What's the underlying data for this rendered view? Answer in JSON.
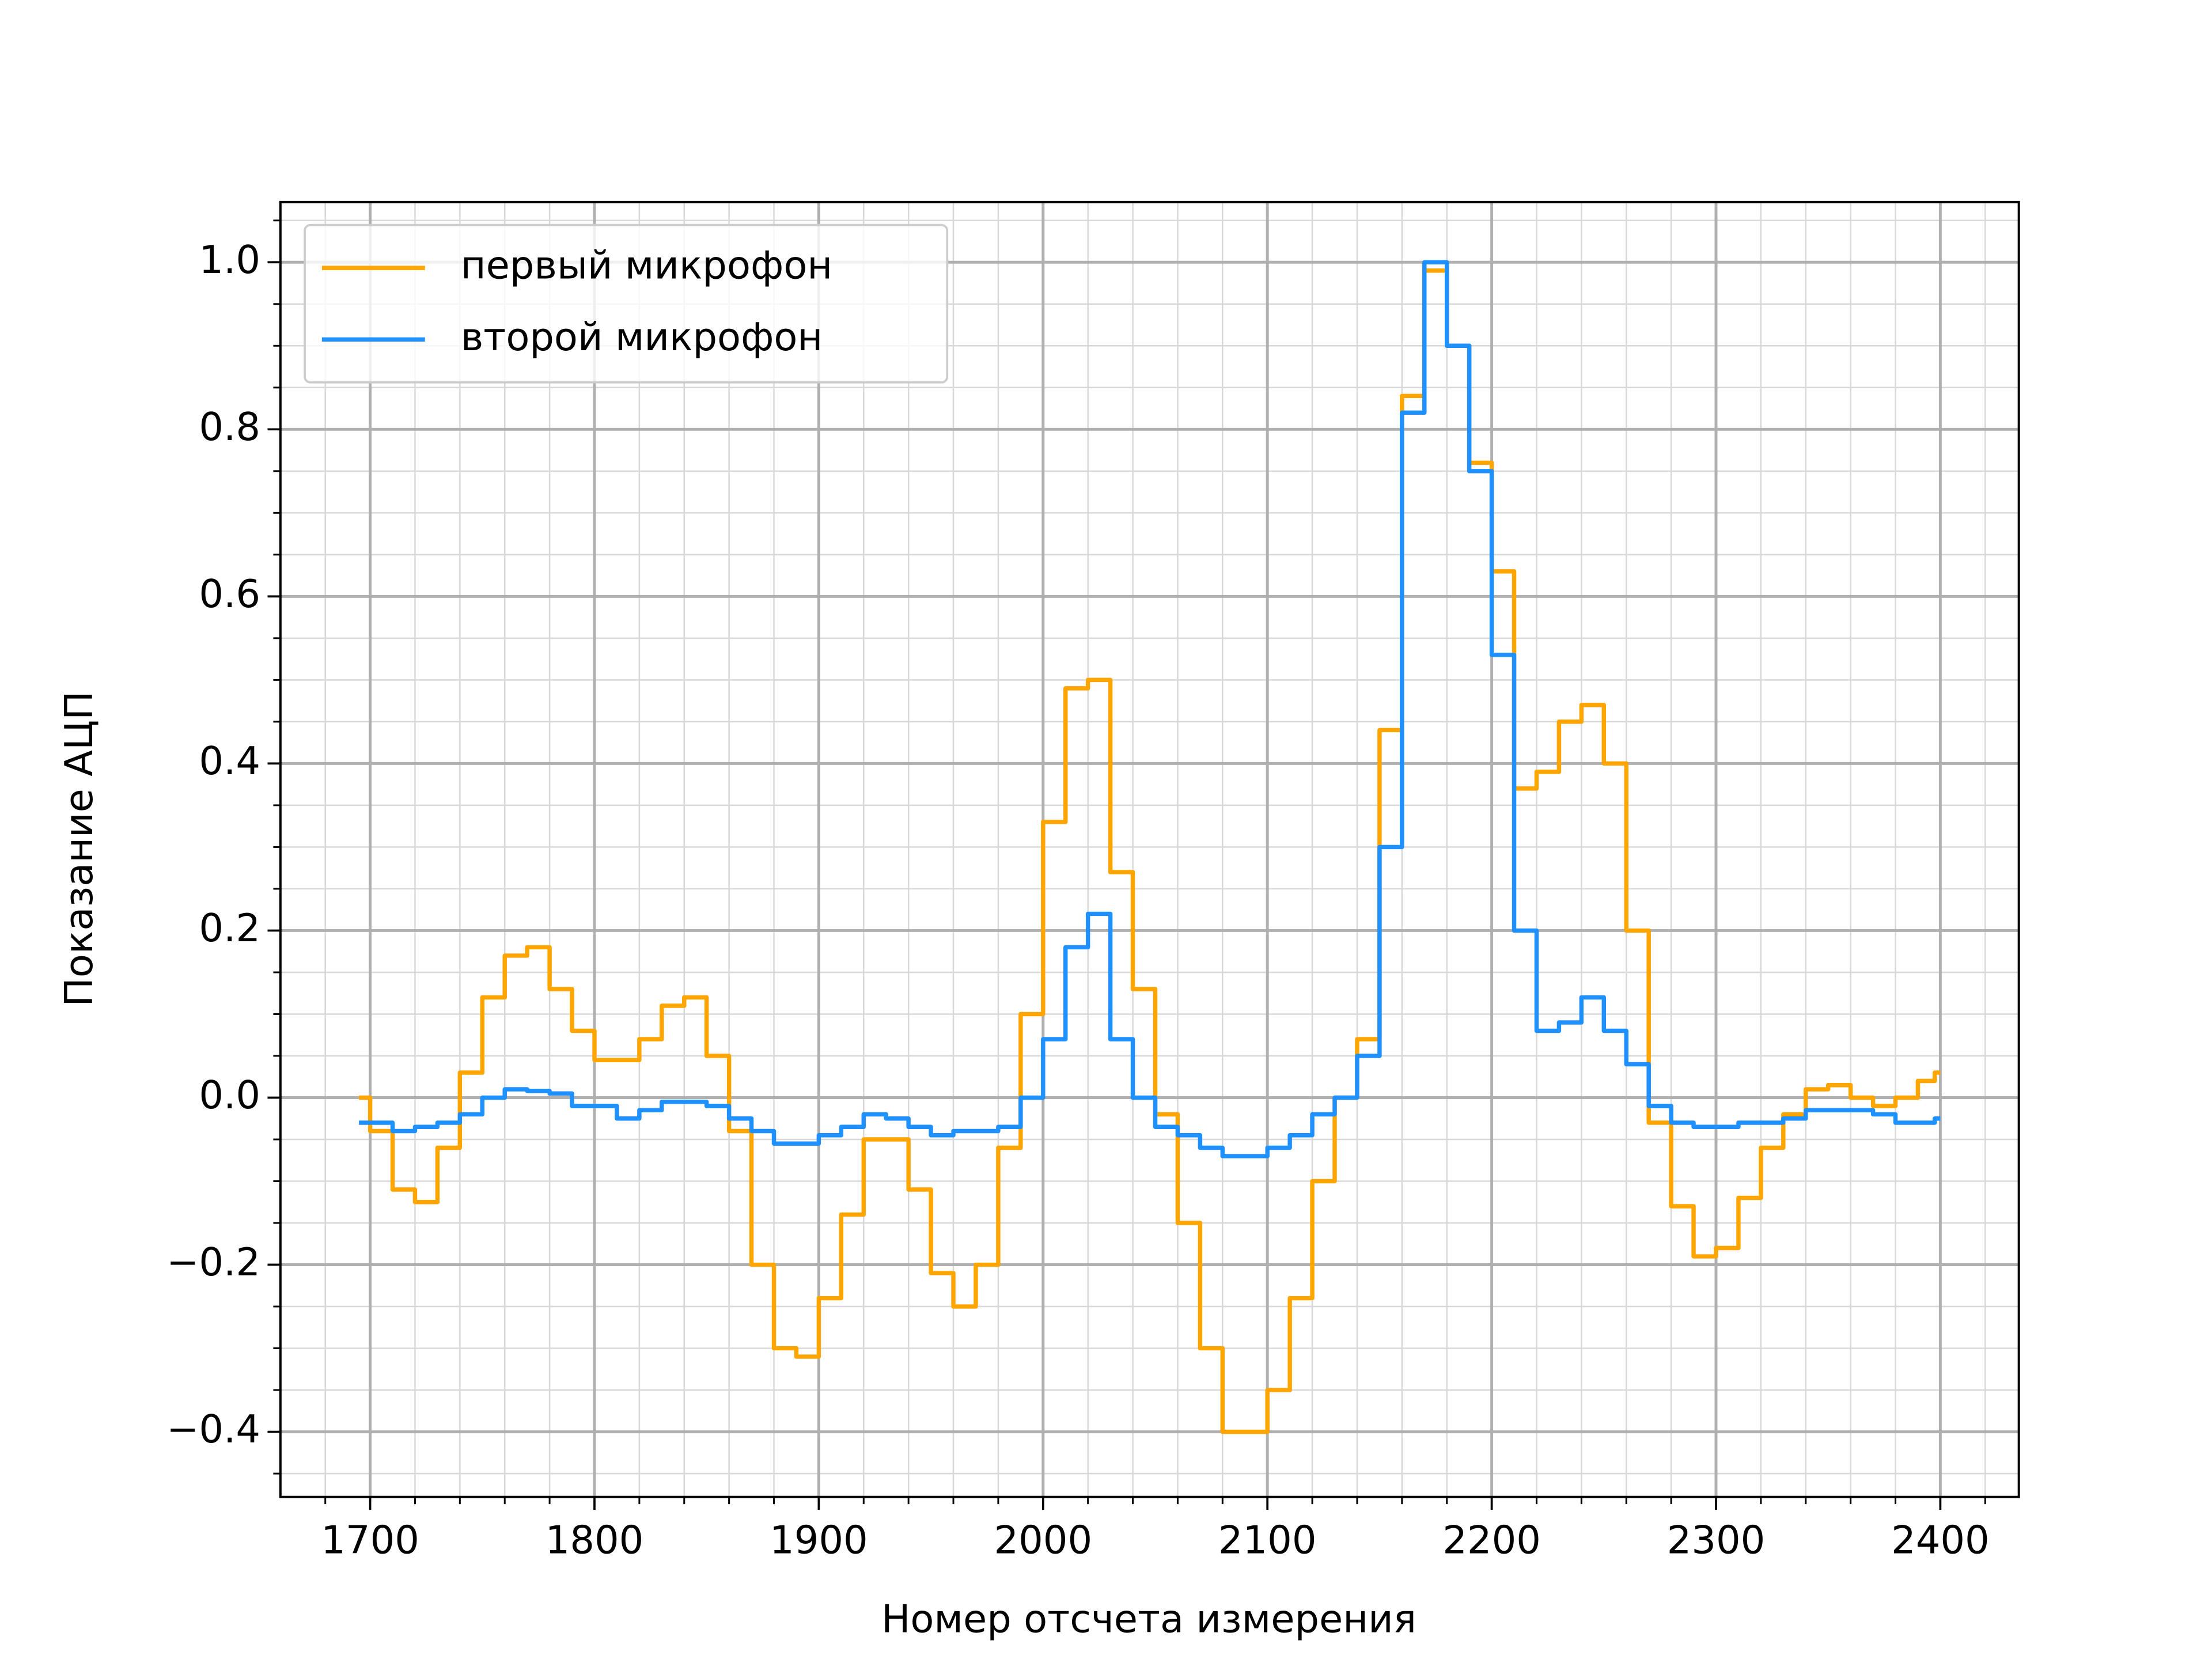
{
  "chart_data": {
    "type": "line",
    "drawstyle": "steps-mid",
    "xlabel": "Номер отсчета измерения",
    "ylabel": "Показание АЦП",
    "x": [
      1695,
      1705,
      1715,
      1725,
      1735,
      1745,
      1755,
      1765,
      1775,
      1785,
      1795,
      1805,
      1815,
      1825,
      1835,
      1845,
      1855,
      1865,
      1875,
      1885,
      1895,
      1905,
      1915,
      1925,
      1935,
      1945,
      1955,
      1965,
      1975,
      1985,
      1995,
      2005,
      2015,
      2025,
      2035,
      2045,
      2055,
      2065,
      2075,
      2085,
      2095,
      2105,
      2115,
      2125,
      2135,
      2145,
      2155,
      2165,
      2175,
      2185,
      2195,
      2205,
      2215,
      2225,
      2235,
      2245,
      2255,
      2265,
      2275,
      2285,
      2295,
      2305,
      2315,
      2325,
      2335,
      2345,
      2355,
      2365,
      2375,
      2385,
      2395,
      2400
    ],
    "series": [
      {
        "name": "первый микрофон",
        "color": "#ffa500",
        "values": [
          0.0,
          -0.04,
          -0.11,
          -0.125,
          -0.06,
          0.03,
          0.12,
          0.17,
          0.18,
          0.13,
          0.08,
          0.045,
          0.045,
          0.07,
          0.11,
          0.12,
          0.05,
          -0.04,
          -0.2,
          -0.3,
          -0.31,
          -0.24,
          -0.14,
          -0.05,
          -0.05,
          -0.11,
          -0.21,
          -0.25,
          -0.2,
          -0.06,
          0.1,
          0.33,
          0.49,
          0.5,
          0.27,
          0.13,
          -0.02,
          -0.15,
          -0.3,
          -0.4,
          -0.4,
          -0.35,
          -0.24,
          -0.1,
          0.0,
          0.07,
          0.44,
          0.84,
          0.99,
          0.9,
          0.76,
          0.63,
          0.37,
          0.39,
          0.45,
          0.47,
          0.4,
          0.2,
          -0.03,
          -0.13,
          -0.19,
          -0.18,
          -0.12,
          -0.06,
          -0.02,
          0.01,
          0.015,
          0.0,
          -0.01,
          0.0,
          0.02,
          0.03
        ]
      },
      {
        "name": "второй микрофон",
        "color": "#1e90ff",
        "values": [
          -0.03,
          -0.03,
          -0.04,
          -0.035,
          -0.03,
          -0.02,
          0.0,
          0.01,
          0.008,
          0.005,
          -0.01,
          -0.01,
          -0.025,
          -0.015,
          -0.005,
          -0.005,
          -0.01,
          -0.025,
          -0.04,
          -0.055,
          -0.055,
          -0.045,
          -0.035,
          -0.02,
          -0.025,
          -0.035,
          -0.045,
          -0.04,
          -0.04,
          -0.035,
          0.0,
          0.07,
          0.18,
          0.22,
          0.07,
          0.0,
          -0.035,
          -0.045,
          -0.06,
          -0.07,
          -0.07,
          -0.06,
          -0.045,
          -0.02,
          0.0,
          0.05,
          0.3,
          0.82,
          1.0,
          0.9,
          0.75,
          0.53,
          0.2,
          0.08,
          0.09,
          0.12,
          0.08,
          0.04,
          -0.01,
          -0.03,
          -0.035,
          -0.035,
          -0.03,
          -0.03,
          -0.025,
          -0.015,
          -0.015,
          -0.015,
          -0.02,
          -0.03,
          -0.03,
          -0.025
        ]
      }
    ],
    "xlim": [
      1660,
      2435
    ],
    "ylim": [
      -0.478,
      1.072
    ],
    "xticks": [
      1700,
      1800,
      1900,
      2000,
      2100,
      2200,
      2300,
      2400
    ],
    "yticks": [
      {
        "value": -0.4,
        "label": "−0.4"
      },
      {
        "value": -0.2,
        "label": "−0.2"
      },
      {
        "value": 0,
        "label": "0.0"
      },
      {
        "value": 0.2,
        "label": "0.2"
      },
      {
        "value": 0.4,
        "label": "0.4"
      },
      {
        "value": 0.6,
        "label": "0.6"
      },
      {
        "value": 0.8,
        "label": "0.8"
      },
      {
        "value": 1.0,
        "label": "1.0"
      }
    ],
    "xminorticks": [
      1680,
      1700,
      1720,
      1740,
      1760,
      1780,
      1800,
      1820,
      1840,
      1860,
      1880,
      1900,
      1920,
      1940,
      1960,
      1980,
      2000,
      2020,
      2040,
      2060,
      2080,
      2100,
      2120,
      2140,
      2160,
      2180,
      2200,
      2220,
      2240,
      2260,
      2280,
      2300,
      2320,
      2340,
      2360,
      2380,
      2400,
      2420
    ],
    "yminorticks": [
      -0.45,
      -0.4,
      -0.35,
      -0.3,
      -0.25,
      -0.2,
      -0.15,
      -0.1,
      -0.05,
      0,
      0.05,
      0.1,
      0.15,
      0.2,
      0.25,
      0.3,
      0.35,
      0.4,
      0.45,
      0.5,
      0.55,
      0.6,
      0.65,
      0.7,
      0.75,
      0.8,
      0.85,
      0.9,
      0.95,
      1.0,
      1.05
    ],
    "grid": true,
    "minor_grid": true,
    "legend": "upper left"
  }
}
